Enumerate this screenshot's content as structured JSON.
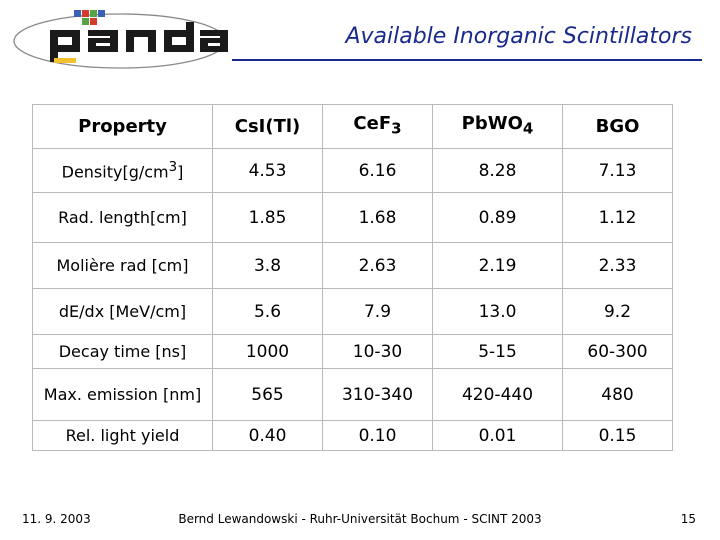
{
  "header": {
    "logo_text": "panda",
    "title": "Available Inorganic Scintillators"
  },
  "table": {
    "columns": [
      {
        "main": "Property",
        "sub": ""
      },
      {
        "main": "CsI(Tl)",
        "sub": ""
      },
      {
        "main": "CeF",
        "sub": "3"
      },
      {
        "main": "PbWO",
        "sub": "4"
      },
      {
        "main": "BGO",
        "sub": ""
      }
    ],
    "rows": [
      {
        "label": "Density[g/cm",
        "sup": "3",
        "label_tail": "]",
        "values": [
          "4.53",
          "6.16",
          "8.28",
          "7.13"
        ]
      },
      {
        "label": "Rad. length[cm]",
        "sup": "",
        "label_tail": "",
        "values": [
          "1.85",
          "1.68",
          "0.89",
          "1.12"
        ]
      },
      {
        "label": "Molière rad [cm]",
        "sup": "",
        "label_tail": "",
        "values": [
          "3.8",
          "2.63",
          "2.19",
          "2.33"
        ]
      },
      {
        "label": "dE/dx [MeV/cm]",
        "sup": "",
        "label_tail": "",
        "values": [
          "5.6",
          "7.9",
          "13.0",
          "9.2"
        ]
      },
      {
        "label": "Decay time [ns]",
        "sup": "",
        "label_tail": "",
        "values": [
          "1000",
          "10-30",
          "5-15",
          "60-300"
        ]
      },
      {
        "label": "Max. emission [nm]",
        "sup": "",
        "label_tail": "",
        "values": [
          "565",
          "310-340",
          "420-440",
          "480"
        ]
      },
      {
        "label": "Rel. light yield",
        "sup": "",
        "label_tail": "",
        "values": [
          "0.40",
          "0.10",
          "0.01",
          "0.15"
        ]
      }
    ]
  },
  "footer": {
    "date": "11. 9. 2003",
    "center": "Bernd Lewandowski - Ruhr-Universität Bochum - SCINT 2003",
    "page": "15"
  },
  "colors": {
    "title_blue": "#1a2a8c",
    "logo_yellow": "#f2c12e",
    "logo_red": "#d23c2c",
    "logo_green": "#5aa046",
    "logo_blue": "#3a62b4"
  }
}
